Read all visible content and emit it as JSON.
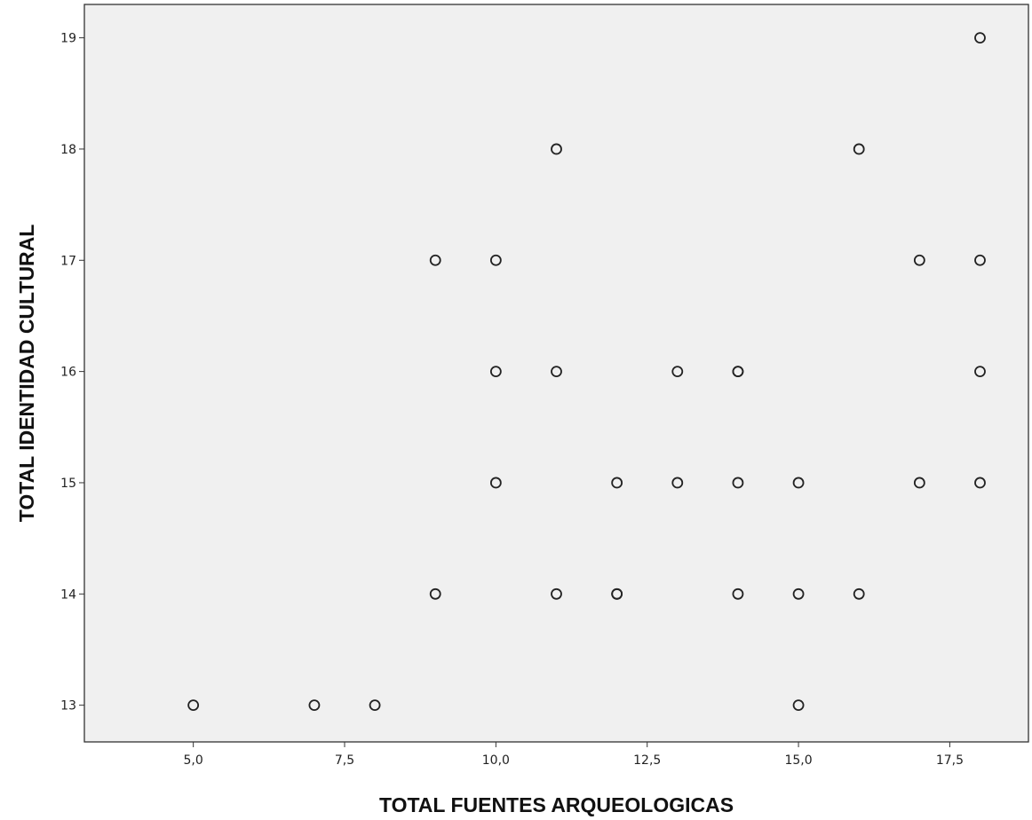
{
  "chart_data": {
    "type": "scatter",
    "xlabel": "TOTAL FUENTES ARQUEOLOGICAS",
    "ylabel": "TOTAL IDENTIDAD CULTURAL",
    "xlim": [
      3.2,
      18.8
    ],
    "ylim": [
      12.67,
      19.3
    ],
    "x_ticks": [
      5.0,
      7.5,
      10.0,
      12.5,
      15.0,
      17.5
    ],
    "x_tick_labels": [
      "5,0",
      "7,5",
      "10,0",
      "12,5",
      "15,0",
      "17,5"
    ],
    "y_ticks": [
      13,
      14,
      15,
      16,
      17,
      18,
      19
    ],
    "y_tick_labels": [
      "13",
      "14",
      "15",
      "16",
      "17",
      "18",
      "19"
    ],
    "grid": false,
    "background": "#f0f0f0",
    "marker": "open-circle",
    "points": [
      {
        "x": 18,
        "y": 19
      },
      {
        "x": 11,
        "y": 18
      },
      {
        "x": 16,
        "y": 18
      },
      {
        "x": 9,
        "y": 17
      },
      {
        "x": 10,
        "y": 17
      },
      {
        "x": 17,
        "y": 17
      },
      {
        "x": 18,
        "y": 17
      },
      {
        "x": 10,
        "y": 16
      },
      {
        "x": 11,
        "y": 16
      },
      {
        "x": 13,
        "y": 16
      },
      {
        "x": 14,
        "y": 16
      },
      {
        "x": 14,
        "y": 16
      },
      {
        "x": 18,
        "y": 16
      },
      {
        "x": 10,
        "y": 15
      },
      {
        "x": 12,
        "y": 15
      },
      {
        "x": 13,
        "y": 15
      },
      {
        "x": 14,
        "y": 15
      },
      {
        "x": 15,
        "y": 15
      },
      {
        "x": 17,
        "y": 15
      },
      {
        "x": 18,
        "y": 15
      },
      {
        "x": 9,
        "y": 14
      },
      {
        "x": 11,
        "y": 14
      },
      {
        "x": 12,
        "y": 14
      },
      {
        "x": 12,
        "y": 14
      },
      {
        "x": 14,
        "y": 14
      },
      {
        "x": 15,
        "y": 14
      },
      {
        "x": 16,
        "y": 14
      },
      {
        "x": 5,
        "y": 13
      },
      {
        "x": 7,
        "y": 13
      },
      {
        "x": 8,
        "y": 13
      },
      {
        "x": 15,
        "y": 13
      }
    ]
  }
}
